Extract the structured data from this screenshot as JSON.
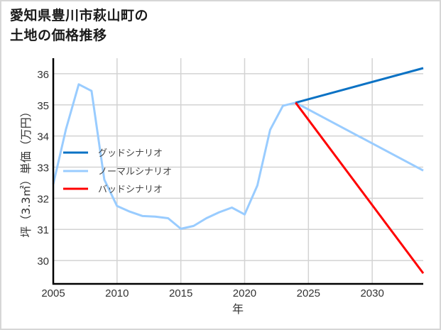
{
  "title": {
    "line1": "愛知県豊川市萩山町の",
    "line2": "土地の価格推移"
  },
  "chart_data": {
    "type": "line",
    "title": "愛知県豊川市萩山町の土地の価格推移",
    "xlabel": "年",
    "ylabel": "坪（3.3㎡）単価（万円）",
    "xlim": [
      2005,
      2034
    ],
    "ylim": [
      29.25,
      36.5
    ],
    "xticks": [
      2005,
      2010,
      2015,
      2020,
      2025,
      2030
    ],
    "yticks": [
      30,
      31,
      32,
      33,
      34,
      35,
      36
    ],
    "grid": true,
    "legend_position": "center-left",
    "series": [
      {
        "name": "グッドシナリオ",
        "color": "#0B72C4",
        "x": [
          2024,
          2034
        ],
        "values": [
          35.07,
          36.18
        ]
      },
      {
        "name": "ノーマルシナリオ",
        "color": "#99CCFF",
        "x": [
          2005,
          2006,
          2007,
          2008,
          2009,
          2010,
          2011,
          2012,
          2013,
          2014,
          2015,
          2016,
          2017,
          2018,
          2019,
          2020,
          2021,
          2022,
          2023,
          2024,
          2034
        ],
        "values": [
          32.45,
          34.23,
          35.66,
          35.45,
          32.6,
          31.75,
          31.57,
          31.43,
          31.41,
          31.36,
          31.02,
          31.11,
          31.36,
          31.55,
          31.7,
          31.48,
          32.41,
          34.2,
          34.97,
          35.07,
          32.89
        ]
      },
      {
        "name": "バッドシナリオ",
        "color": "#FF0000",
        "x": [
          2024,
          2034
        ],
        "values": [
          35.07,
          29.59
        ]
      }
    ]
  },
  "colors": {
    "axis": "#000000",
    "grid": "#d3d3d3",
    "frame": "#d6d6d6"
  }
}
